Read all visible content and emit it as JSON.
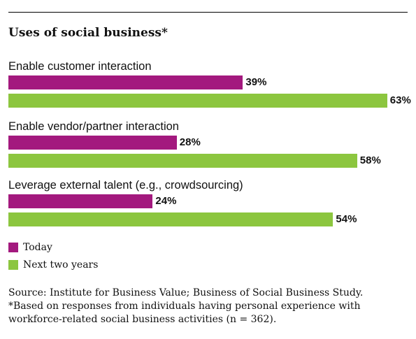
{
  "colors": {
    "today": "#a3197e",
    "next": "#8cc63f"
  },
  "chart_data": {
    "type": "bar",
    "orientation": "horizontal",
    "title": "Uses of social business*",
    "categories": [
      "Enable customer interaction",
      "Enable vendor/partner interaction",
      "Leverage external talent (e.g., crowdsourcing)"
    ],
    "series": [
      {
        "name": "Today",
        "values": [
          39,
          28,
          24
        ],
        "labels": [
          "39%",
          "28%",
          "24%"
        ]
      },
      {
        "name": "Next two years",
        "values": [
          63,
          58,
          54
        ],
        "labels": [
          "63%",
          "58%",
          "54%"
        ]
      }
    ],
    "legend": {
      "position": "bottom-left",
      "items": [
        "Today",
        "Next two years"
      ]
    },
    "grid": false
  },
  "source": {
    "line1": "Source: Institute for Business Value; Business of Social Business Study.",
    "line2": "*Based on responses from individuals having personal experience with",
    "line3": "workforce-related social business activities (n = 362)."
  }
}
